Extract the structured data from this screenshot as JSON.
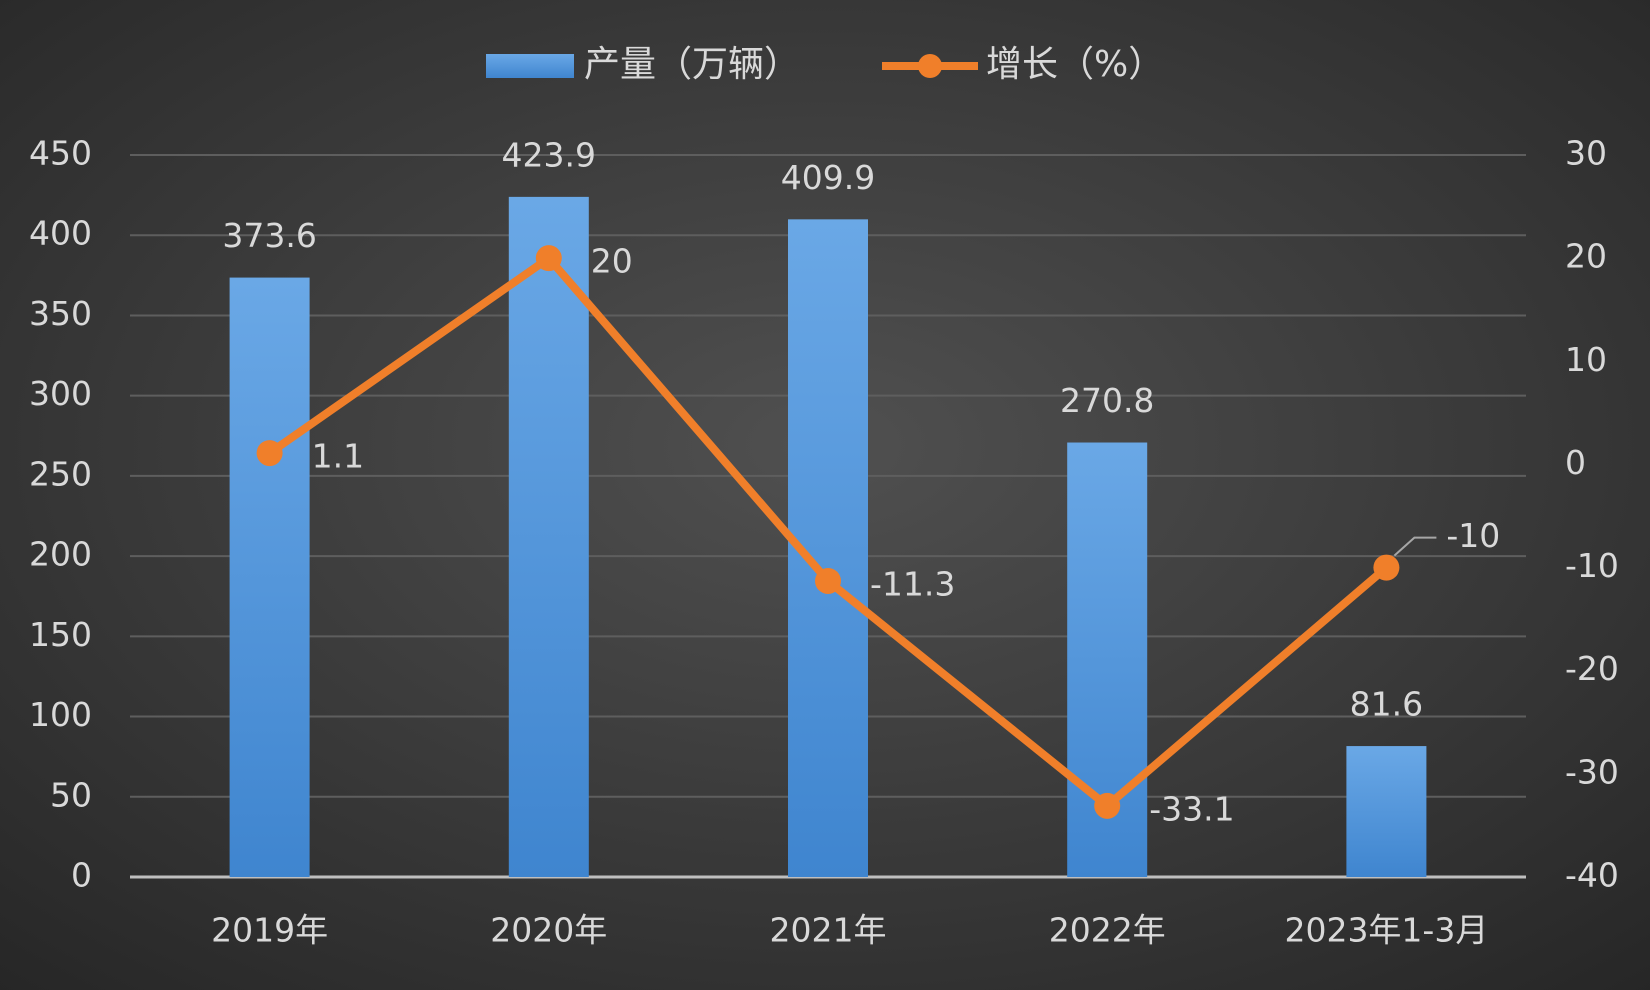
{
  "chart_data": {
    "type": "combo",
    "categories": [
      "2019年",
      "2020年",
      "2021年",
      "2022年",
      "2023年1-3月"
    ],
    "series": [
      {
        "name": "产量（万辆）",
        "type": "bar",
        "color": "#4a90d9",
        "values": [
          373.6,
          423.9,
          409.9,
          270.8,
          81.6
        ]
      },
      {
        "name": "增长（%）",
        "type": "line",
        "axis": "y2",
        "color": "#f07f2a",
        "values": [
          1.1,
          20,
          -11.3,
          -33.1,
          -10
        ]
      }
    ],
    "ylim": [
      0,
      450
    ],
    "yticks": [
      0,
      50,
      100,
      150,
      200,
      250,
      300,
      350,
      400,
      450
    ],
    "y2lim": [
      -40,
      30
    ],
    "y2ticks": [
      -40,
      -30,
      -20,
      -10,
      0,
      10,
      20,
      30
    ],
    "grid": true,
    "legend": "top"
  }
}
